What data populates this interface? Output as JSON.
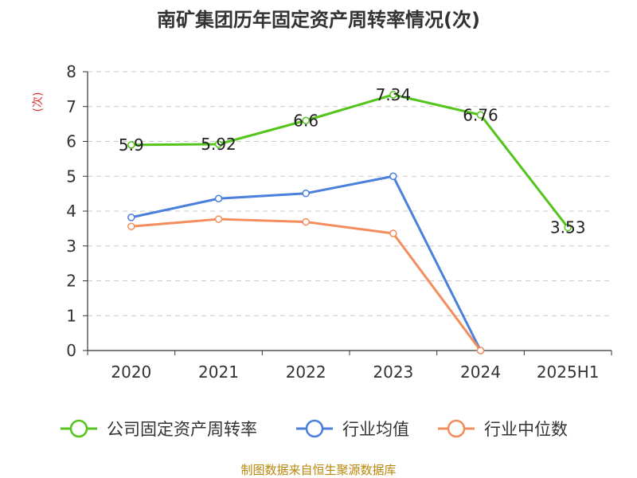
{
  "chart_data": {
    "type": "line",
    "title": "南矿集团历年固定资产周转率情况(次)",
    "ylabel": "(次)",
    "xlabel": "",
    "categories": [
      "2020",
      "2021",
      "2022",
      "2023",
      "2024",
      "2025H1"
    ],
    "ylim": [
      0,
      8
    ],
    "yticks": [
      "0",
      "1",
      "2",
      "3",
      "4",
      "5",
      "6",
      "7",
      "8"
    ],
    "grid": true,
    "legend_position": "bottom",
    "series": [
      {
        "name": "公司固定资产周转率",
        "color": "#52c41a",
        "values": [
          5.9,
          5.92,
          6.6,
          7.34,
          6.76,
          3.53
        ],
        "labels": [
          "5.9",
          "5.92",
          "6.6",
          "7.34",
          "6.76",
          "3.53"
        ]
      },
      {
        "name": "行业均值",
        "color": "#4a7fdc",
        "values": [
          3.82,
          4.36,
          4.51,
          5.0,
          0,
          null
        ]
      },
      {
        "name": "行业中位数",
        "color": "#f48c5c",
        "values": [
          3.56,
          3.77,
          3.69,
          3.36,
          0,
          null
        ]
      }
    ]
  },
  "source": {
    "text": "制图数据来自恒生聚源数据库",
    "color": "#b8860b"
  },
  "ylabel_color": "#e03030"
}
